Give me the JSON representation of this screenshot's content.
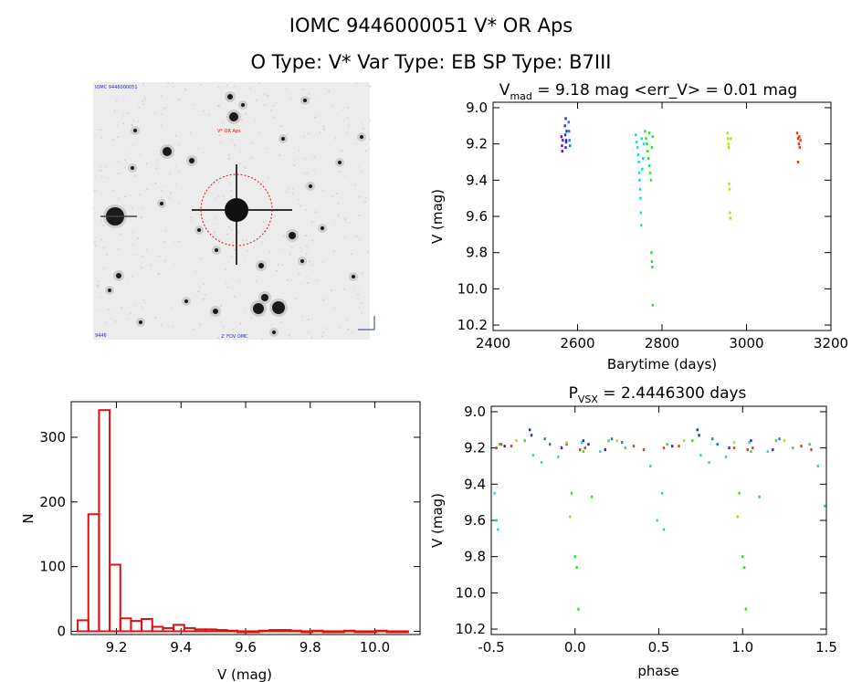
{
  "header": {
    "line1": "IOMC 9446000051    V* OR Aps",
    "line2": "O Type: V*  Var Type: EB  SP Type: B7III"
  },
  "image_panel": {
    "label_top_left": "IOMC 9446000051",
    "label_target": "V* OR Aps",
    "label_bottom_left": "9446",
    "label_bottom_center": "2' FOV OMC"
  },
  "chart_data": [
    {
      "id": "lightcurve",
      "type": "scatter",
      "title": "V_mad = 9.18 mag <err_V> = 0.01 mag",
      "title_parts": {
        "a": "V",
        "sub": "mad",
        "b": " = 9.18 mag <err_V> = 0.01 mag"
      },
      "xlabel": "Barytime (days)",
      "ylabel": "V (mag)",
      "xlim": [
        2400,
        3200
      ],
      "ylim": [
        10.23,
        8.97
      ],
      "xticks": [
        "2400",
        "2600",
        "2800",
        "3000",
        "3200"
      ],
      "yticks": [
        "9.0",
        "9.2",
        "9.4",
        "9.6",
        "9.8",
        "10.0",
        "10.2"
      ],
      "y_inverted": true,
      "series": [
        {
          "color": "#6a0dad",
          "points": [
            [
              2562,
              9.16
            ],
            [
              2563,
              9.21
            ],
            [
              2564,
              9.24
            ],
            [
              2565,
              9.18
            ]
          ]
        },
        {
          "color": "#1a2fd0",
          "points": [
            [
              2570,
              9.1
            ],
            [
              2571,
              9.15
            ],
            [
              2572,
              9.22
            ],
            [
              2573,
              9.18
            ],
            [
              2574,
              9.13
            ],
            [
              2572,
              9.06
            ],
            [
              2573,
              9.19
            ]
          ]
        },
        {
          "color": "#1f7be0",
          "points": [
            [
              2580,
              9.13
            ],
            [
              2581,
              9.18
            ],
            [
              2582,
              9.21
            ],
            [
              2579,
              9.08
            ]
          ]
        },
        {
          "color": "#2ad4d4",
          "points": [
            [
              2738,
              9.15
            ],
            [
              2740,
              9.19
            ],
            [
              2742,
              9.22
            ],
            [
              2744,
              9.26
            ],
            [
              2745,
              9.3
            ],
            [
              2746,
              9.36
            ],
            [
              2747,
              9.4
            ],
            [
              2748,
              9.45
            ],
            [
              2749,
              9.5
            ],
            [
              2750,
              9.58
            ],
            [
              2751,
              9.65
            ],
            [
              2753,
              9.34
            ],
            [
              2755,
              9.28
            ],
            [
              2757,
              9.2
            ],
            [
              2752,
              9.17
            ]
          ]
        },
        {
          "color": "#30e030",
          "points": [
            [
              2760,
              9.13
            ],
            [
              2762,
              9.17
            ],
            [
              2764,
              9.2
            ],
            [
              2766,
              9.24
            ],
            [
              2768,
              9.28
            ],
            [
              2770,
              9.32
            ],
            [
              2772,
              9.36
            ],
            [
              2774,
              9.4
            ],
            [
              2776,
              9.22
            ],
            [
              2778,
              9.16
            ],
            [
              2775,
              9.8
            ],
            [
              2776,
              9.85
            ],
            [
              2777,
              9.88
            ],
            [
              2778,
              10.09
            ],
            [
              2770,
              9.14
            ]
          ]
        },
        {
          "color": "#a8e01a",
          "points": [
            [
              2955,
              9.14
            ],
            [
              2956,
              9.17
            ],
            [
              2957,
              9.2
            ],
            [
              2958,
              9.22
            ],
            [
              2959,
              9.42
            ],
            [
              2960,
              9.45
            ],
            [
              2961,
              9.58
            ],
            [
              2962,
              9.61
            ],
            [
              2963,
              9.17
            ]
          ]
        },
        {
          "color": "#e43a1a",
          "points": [
            [
              3120,
              9.14
            ],
            [
              3122,
              9.17
            ],
            [
              3124,
              9.2
            ],
            [
              3126,
              9.22
            ],
            [
              3128,
              9.18
            ],
            [
              3122,
              9.3
            ],
            [
              3125,
              9.16
            ]
          ]
        }
      ]
    },
    {
      "id": "histogram",
      "type": "bar",
      "title": "",
      "xlabel": "V (mag)",
      "ylabel": "N",
      "xlim": [
        9.06,
        10.14
      ],
      "ylim": [
        -5,
        355
      ],
      "xticks": [
        "9.2",
        "9.4",
        "9.6",
        "9.8",
        "10.0"
      ],
      "yticks": [
        "0",
        "100",
        "200",
        "300"
      ],
      "bin_width": 0.033,
      "bins": [
        9.08,
        9.113,
        9.146,
        9.179,
        9.212,
        9.245,
        9.278,
        9.311,
        9.344,
        9.377,
        9.41,
        9.443,
        9.476,
        9.509,
        9.542,
        9.575,
        9.608,
        9.641,
        9.674,
        9.707,
        9.74,
        9.773,
        9.806,
        9.839,
        9.872,
        9.905,
        9.938,
        9.971,
        10.004,
        10.037,
        10.07
      ],
      "values": [
        17,
        181,
        342,
        103,
        20,
        16,
        19,
        7,
        5,
        10,
        5,
        3,
        3,
        2,
        1,
        0,
        0,
        1,
        2,
        2,
        1,
        0,
        1,
        0,
        0,
        1,
        0,
        0,
        1,
        0,
        0
      ],
      "color": "#e01010"
    },
    {
      "id": "phased",
      "type": "scatter",
      "title": "P_vsx = 2.4446300 days",
      "title_parts": {
        "a": "P",
        "sub": "VSX",
        "b": " = 2.4446300 days"
      },
      "xlabel": "phase",
      "ylabel": "V (mag)",
      "xlim": [
        -0.5,
        1.5
      ],
      "ylim": [
        10.23,
        8.97
      ],
      "xticks": [
        "-0.5",
        "0.0",
        "0.5",
        "1.0",
        "1.5"
      ],
      "yticks": [
        "9.0",
        "9.2",
        "9.4",
        "9.6",
        "9.8",
        "10.0",
        "10.2"
      ],
      "y_inverted": true,
      "series": [
        {
          "color": "#e43a1a",
          "points": [
            [
              -0.47,
              9.2
            ],
            [
              -0.44,
              9.18
            ],
            [
              -0.38,
              9.19
            ],
            [
              -0.05,
              9.18
            ],
            [
              0.03,
              9.21
            ],
            [
              0.06,
              9.2
            ],
            [
              0.35,
              9.19
            ],
            [
              0.41,
              9.21
            ],
            [
              0.53,
              9.2
            ],
            [
              0.62,
              9.19
            ],
            [
              0.95,
              9.2
            ],
            [
              1.03,
              9.21
            ],
            [
              1.06,
              9.2
            ],
            [
              1.35,
              9.19
            ],
            [
              1.41,
              9.21
            ]
          ]
        },
        {
          "color": "#30e030",
          "points": [
            [
              -0.45,
              9.18
            ],
            [
              -0.3,
              9.16
            ],
            [
              -0.15,
              9.18
            ],
            [
              -0.02,
              9.45
            ],
            [
              0.0,
              9.8
            ],
            [
              0.01,
              9.86
            ],
            [
              0.02,
              10.09
            ],
            [
              0.05,
              9.22
            ],
            [
              0.1,
              9.47
            ],
            [
              0.2,
              9.16
            ],
            [
              0.3,
              9.2
            ],
            [
              0.55,
              9.18
            ],
            [
              0.7,
              9.16
            ],
            [
              0.85,
              9.18
            ],
            [
              0.98,
              9.45
            ],
            [
              1.0,
              9.8
            ],
            [
              1.01,
              9.86
            ],
            [
              1.02,
              10.09
            ],
            [
              1.05,
              9.22
            ],
            [
              1.1,
              9.47
            ],
            [
              1.2,
              9.16
            ],
            [
              1.3,
              9.2
            ],
            [
              1.4,
              9.18
            ]
          ]
        },
        {
          "color": "#2ad4d4",
          "points": [
            [
              -0.48,
              9.45
            ],
            [
              -0.47,
              9.6
            ],
            [
              -0.46,
              9.65
            ],
            [
              -0.25,
              9.24
            ],
            [
              -0.2,
              9.28
            ],
            [
              -0.1,
              9.25
            ],
            [
              0.04,
              9.17
            ],
            [
              0.15,
              9.22
            ],
            [
              0.45,
              9.3
            ],
            [
              0.49,
              9.6
            ],
            [
              0.52,
              9.45
            ],
            [
              0.53,
              9.65
            ],
            [
              0.75,
              9.24
            ],
            [
              0.8,
              9.28
            ],
            [
              0.9,
              9.25
            ],
            [
              1.04,
              9.17
            ],
            [
              1.15,
              9.22
            ],
            [
              1.45,
              9.3
            ],
            [
              1.49,
              9.52
            ]
          ]
        },
        {
          "color": "#a8e01a",
          "points": [
            [
              -0.35,
              9.16
            ],
            [
              -0.05,
              9.17
            ],
            [
              -0.03,
              9.58
            ],
            [
              0.25,
              9.16
            ],
            [
              0.65,
              9.16
            ],
            [
              0.95,
              9.17
            ],
            [
              0.97,
              9.58
            ],
            [
              1.25,
              9.16
            ]
          ]
        },
        {
          "color": "#1a2fd0",
          "points": [
            [
              -0.27,
              9.1
            ],
            [
              -0.26,
              9.13
            ],
            [
              0.05,
              9.16
            ],
            [
              0.08,
              9.18
            ],
            [
              0.73,
              9.1
            ],
            [
              0.74,
              9.13
            ],
            [
              1.05,
              9.16
            ]
          ]
        },
        {
          "color": "#1f7be0",
          "points": [
            [
              -0.18,
              9.15
            ],
            [
              -0.15,
              9.18
            ],
            [
              0.22,
              9.15
            ],
            [
              0.28,
              9.17
            ],
            [
              0.82,
              9.15
            ],
            [
              0.85,
              9.18
            ],
            [
              1.22,
              9.15
            ]
          ]
        },
        {
          "color": "#6a0dad",
          "points": [
            [
              -0.42,
              9.19
            ],
            [
              -0.08,
              9.2
            ],
            [
              0.18,
              9.21
            ],
            [
              0.58,
              9.19
            ],
            [
              0.92,
              9.2
            ],
            [
              1.18,
              9.21
            ]
          ]
        }
      ]
    }
  ]
}
